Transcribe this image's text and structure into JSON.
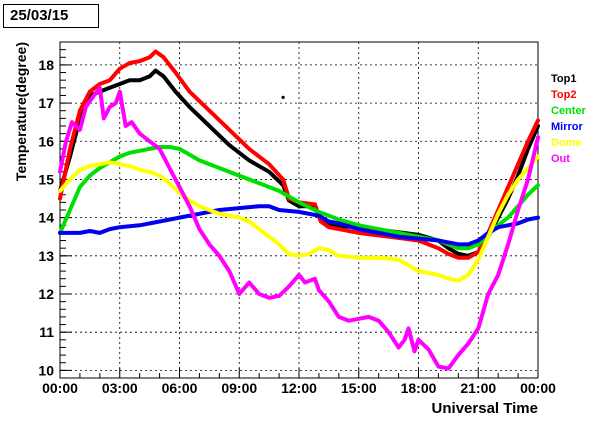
{
  "date_label": "25/03/15",
  "chart_data": {
    "type": "line",
    "title": "",
    "xlabel": "Universal Time",
    "ylabel": "Temperature(degree)",
    "xlim": [
      0,
      24
    ],
    "ylim": [
      9.8,
      18.6
    ],
    "x_ticks": [
      "00:00",
      "03:00",
      "06:00",
      "09:00",
      "12:00",
      "15:00",
      "18:00",
      "21:00",
      "00:00"
    ],
    "y_ticks": [
      10,
      11,
      12,
      13,
      14,
      15,
      16,
      17,
      18
    ],
    "grid": true,
    "legend_position": "right",
    "series": [
      {
        "name": "Top1",
        "color": "#000000",
        "points": [
          [
            0,
            14.7
          ],
          [
            0.5,
            15.6
          ],
          [
            1,
            16.6
          ],
          [
            1.5,
            17.2
          ],
          [
            2,
            17.3
          ],
          [
            2.5,
            17.4
          ],
          [
            3,
            17.5
          ],
          [
            3.5,
            17.6
          ],
          [
            4,
            17.6
          ],
          [
            4.5,
            17.7
          ],
          [
            4.8,
            17.85
          ],
          [
            5.2,
            17.7
          ],
          [
            5.8,
            17.3
          ],
          [
            6.5,
            16.9
          ],
          [
            7.5,
            16.4
          ],
          [
            8.5,
            15.9
          ],
          [
            9.5,
            15.5
          ],
          [
            10.5,
            15.2
          ],
          [
            11.2,
            14.85
          ],
          [
            11.5,
            14.45
          ],
          [
            12,
            14.3
          ],
          [
            12.8,
            14.3
          ],
          [
            13.1,
            13.9
          ],
          [
            13.5,
            13.8
          ],
          [
            15,
            13.75
          ],
          [
            16.5,
            13.65
          ],
          [
            18,
            13.55
          ],
          [
            19,
            13.4
          ],
          [
            19.5,
            13.2
          ],
          [
            20,
            13.05
          ],
          [
            20.5,
            13.0
          ],
          [
            21,
            13.1
          ],
          [
            21.5,
            13.5
          ],
          [
            22,
            14.0
          ],
          [
            22.5,
            14.5
          ],
          [
            23,
            15.1
          ],
          [
            23.5,
            15.8
          ],
          [
            24,
            16.4
          ]
        ]
      },
      {
        "name": "Top2",
        "color": "#ff0000",
        "points": [
          [
            0,
            14.5
          ],
          [
            0.5,
            15.8
          ],
          [
            1,
            16.8
          ],
          [
            1.5,
            17.3
          ],
          [
            2,
            17.5
          ],
          [
            2.5,
            17.6
          ],
          [
            3,
            17.9
          ],
          [
            3.5,
            18.05
          ],
          [
            4,
            18.1
          ],
          [
            4.5,
            18.2
          ],
          [
            4.8,
            18.35
          ],
          [
            5.2,
            18.2
          ],
          [
            5.8,
            17.8
          ],
          [
            6.5,
            17.3
          ],
          [
            7.5,
            16.8
          ],
          [
            8.5,
            16.3
          ],
          [
            9.5,
            15.8
          ],
          [
            10.5,
            15.4
          ],
          [
            11.2,
            15.0
          ],
          [
            11.5,
            14.5
          ],
          [
            12,
            14.4
          ],
          [
            12.8,
            14.35
          ],
          [
            13.1,
            13.9
          ],
          [
            13.5,
            13.75
          ],
          [
            15,
            13.6
          ],
          [
            16.5,
            13.5
          ],
          [
            18,
            13.4
          ],
          [
            19,
            13.2
          ],
          [
            19.5,
            13.05
          ],
          [
            20,
            12.95
          ],
          [
            20.5,
            12.95
          ],
          [
            21,
            13.1
          ],
          [
            21.5,
            13.6
          ],
          [
            22,
            14.2
          ],
          [
            22.5,
            14.8
          ],
          [
            23,
            15.4
          ],
          [
            23.5,
            16.0
          ],
          [
            24,
            16.55
          ]
        ]
      },
      {
        "name": "Center",
        "color": "#00e000",
        "points": [
          [
            0,
            13.6
          ],
          [
            0.5,
            14.2
          ],
          [
            1,
            14.8
          ],
          [
            1.5,
            15.1
          ],
          [
            2,
            15.3
          ],
          [
            2.5,
            15.45
          ],
          [
            3,
            15.6
          ],
          [
            3.5,
            15.7
          ],
          [
            4,
            15.75
          ],
          [
            4.5,
            15.8
          ],
          [
            5,
            15.85
          ],
          [
            5.5,
            15.85
          ],
          [
            6,
            15.8
          ],
          [
            6.5,
            15.65
          ],
          [
            7,
            15.5
          ],
          [
            8,
            15.3
          ],
          [
            9,
            15.1
          ],
          [
            10,
            14.9
          ],
          [
            11,
            14.7
          ],
          [
            12,
            14.4
          ],
          [
            13,
            14.15
          ],
          [
            14,
            13.95
          ],
          [
            15,
            13.8
          ],
          [
            16,
            13.7
          ],
          [
            17,
            13.6
          ],
          [
            18,
            13.5
          ],
          [
            19,
            13.4
          ],
          [
            19.5,
            13.3
          ],
          [
            20,
            13.2
          ],
          [
            20.5,
            13.2
          ],
          [
            21,
            13.3
          ],
          [
            21.5,
            13.55
          ],
          [
            22,
            13.8
          ],
          [
            22.5,
            14.0
          ],
          [
            23,
            14.3
          ],
          [
            23.5,
            14.6
          ],
          [
            24,
            14.85
          ]
        ]
      },
      {
        "name": "Mirror",
        "color": "#0000ee",
        "points": [
          [
            0,
            13.6
          ],
          [
            1,
            13.6
          ],
          [
            1.5,
            13.65
          ],
          [
            2,
            13.6
          ],
          [
            2.5,
            13.7
          ],
          [
            3,
            13.75
          ],
          [
            4,
            13.8
          ],
          [
            5,
            13.9
          ],
          [
            6,
            14.0
          ],
          [
            7,
            14.1
          ],
          [
            8,
            14.2
          ],
          [
            9,
            14.25
          ],
          [
            10,
            14.3
          ],
          [
            10.5,
            14.3
          ],
          [
            11,
            14.2
          ],
          [
            12,
            14.15
          ],
          [
            13,
            14.05
          ],
          [
            13.5,
            13.9
          ],
          [
            14,
            13.85
          ],
          [
            15,
            13.7
          ],
          [
            16,
            13.6
          ],
          [
            17,
            13.5
          ],
          [
            18,
            13.45
          ],
          [
            19,
            13.4
          ],
          [
            19.5,
            13.35
          ],
          [
            20,
            13.3
          ],
          [
            20.5,
            13.3
          ],
          [
            21,
            13.4
          ],
          [
            21.5,
            13.6
          ],
          [
            22,
            13.75
          ],
          [
            22.5,
            13.8
          ],
          [
            23,
            13.85
          ],
          [
            23.5,
            13.95
          ],
          [
            24,
            14.0
          ]
        ]
      },
      {
        "name": "Dome",
        "color": "#ffff00",
        "points": [
          [
            0,
            14.7
          ],
          [
            0.5,
            15.0
          ],
          [
            1,
            15.25
          ],
          [
            1.5,
            15.35
          ],
          [
            2,
            15.4
          ],
          [
            2.5,
            15.45
          ],
          [
            3,
            15.4
          ],
          [
            3.5,
            15.35
          ],
          [
            4,
            15.25
          ],
          [
            4.5,
            15.2
          ],
          [
            5,
            15.1
          ],
          [
            5.5,
            14.9
          ],
          [
            6,
            14.65
          ],
          [
            6.5,
            14.45
          ],
          [
            7,
            14.3
          ],
          [
            7.5,
            14.2
          ],
          [
            8,
            14.1
          ],
          [
            9,
            14.0
          ],
          [
            9.5,
            13.9
          ],
          [
            10,
            13.7
          ],
          [
            10.5,
            13.5
          ],
          [
            11,
            13.3
          ],
          [
            11.5,
            13.05
          ],
          [
            12,
            13.0
          ],
          [
            12.5,
            13.05
          ],
          [
            13,
            13.2
          ],
          [
            13.5,
            13.15
          ],
          [
            14,
            13.0
          ],
          [
            15,
            12.95
          ],
          [
            16,
            12.95
          ],
          [
            17,
            12.9
          ],
          [
            17.5,
            12.75
          ],
          [
            18,
            12.6
          ],
          [
            18.5,
            12.55
          ],
          [
            19,
            12.5
          ],
          [
            19.5,
            12.4
          ],
          [
            20,
            12.35
          ],
          [
            20.5,
            12.5
          ],
          [
            21,
            12.9
          ],
          [
            21.5,
            13.5
          ],
          [
            22,
            14.1
          ],
          [
            22.5,
            14.6
          ],
          [
            23,
            15.0
          ],
          [
            23.5,
            15.3
          ],
          [
            24,
            15.6
          ]
        ]
      },
      {
        "name": "Out",
        "color": "#ff00ff",
        "points": [
          [
            0,
            15.2
          ],
          [
            0.3,
            16.0
          ],
          [
            0.6,
            16.5
          ],
          [
            1,
            16.3
          ],
          [
            1.3,
            16.9
          ],
          [
            1.7,
            17.2
          ],
          [
            2,
            17.4
          ],
          [
            2.2,
            16.6
          ],
          [
            2.5,
            16.9
          ],
          [
            2.8,
            17.0
          ],
          [
            3,
            17.3
          ],
          [
            3.3,
            16.4
          ],
          [
            3.6,
            16.5
          ],
          [
            4,
            16.2
          ],
          [
            4.5,
            16.0
          ],
          [
            5,
            15.8
          ],
          [
            5.5,
            15.3
          ],
          [
            6,
            14.8
          ],
          [
            6.5,
            14.3
          ],
          [
            7,
            13.7
          ],
          [
            7.5,
            13.3
          ],
          [
            8,
            13.0
          ],
          [
            8.5,
            12.6
          ],
          [
            9,
            12.0
          ],
          [
            9.5,
            12.3
          ],
          [
            10,
            12.0
          ],
          [
            10.5,
            11.9
          ],
          [
            11,
            11.95
          ],
          [
            11.5,
            12.2
          ],
          [
            12,
            12.5
          ],
          [
            12.3,
            12.3
          ],
          [
            12.8,
            12.4
          ],
          [
            13,
            12.1
          ],
          [
            13.5,
            11.8
          ],
          [
            14,
            11.4
          ],
          [
            14.5,
            11.3
          ],
          [
            15,
            11.35
          ],
          [
            15.5,
            11.4
          ],
          [
            16,
            11.3
          ],
          [
            16.5,
            11.0
          ],
          [
            17,
            10.6
          ],
          [
            17.3,
            10.8
          ],
          [
            17.5,
            11.1
          ],
          [
            17.8,
            10.5
          ],
          [
            18,
            10.8
          ],
          [
            18.5,
            10.55
          ],
          [
            19,
            10.1
          ],
          [
            19.5,
            10.05
          ],
          [
            20,
            10.4
          ],
          [
            20.5,
            10.7
          ],
          [
            21,
            11.1
          ],
          [
            21.5,
            12.0
          ],
          [
            22,
            12.5
          ],
          [
            22.5,
            13.3
          ],
          [
            23,
            14.2
          ],
          [
            23.5,
            15.0
          ],
          [
            24,
            16.1
          ]
        ]
      }
    ],
    "annotation_point": [
      11.2,
      17.15
    ]
  }
}
